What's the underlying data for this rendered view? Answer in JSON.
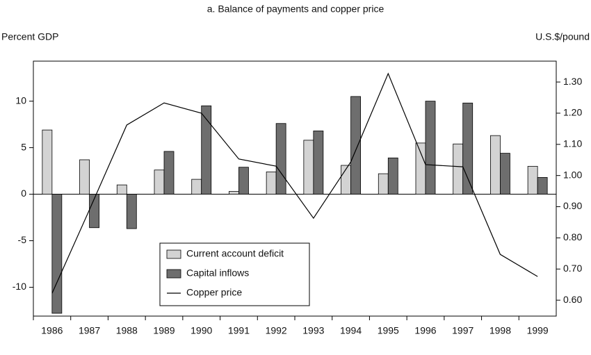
{
  "chart_data": {
    "type": "bar",
    "title": "a. Balance of payments and copper price",
    "y_label": "Percent GDP",
    "y2_label": "U.S.$/pound",
    "categories": [
      "1986",
      "1987",
      "1988",
      "1989",
      "1990",
      "1991",
      "1992",
      "1993",
      "1994",
      "1995",
      "1996",
      "1997",
      "1998",
      "1999"
    ],
    "series": [
      {
        "name": "Current account deficit",
        "color": "#d3d3d3",
        "values": [
          6.9,
          3.7,
          1.0,
          2.6,
          1.6,
          0.3,
          2.4,
          5.8,
          3.1,
          2.2,
          5.5,
          5.4,
          6.3,
          3.0
        ]
      },
      {
        "name": "Capital inflows",
        "color": "#6e6e6e",
        "values": [
          -12.8,
          -3.6,
          -3.7,
          4.6,
          9.5,
          2.9,
          7.6,
          6.8,
          10.5,
          3.9,
          10.0,
          9.8,
          4.4,
          1.8
        ]
      },
      {
        "name": "Copper price",
        "color": "#000000",
        "type": "line",
        "axis": "y2",
        "values": [
          0.622,
          0.89,
          1.162,
          1.233,
          1.2,
          1.053,
          1.03,
          0.863,
          1.044,
          1.327,
          1.035,
          1.028,
          0.747,
          0.676
        ]
      }
    ],
    "ylim": [
      -13.1,
      14.3
    ],
    "yticks": [
      -10,
      -5,
      0,
      5,
      10
    ],
    "y2lim": [
      0.549,
      1.367
    ],
    "y2ticks": [
      {
        "value": 0.6,
        "label": "0.60"
      },
      {
        "value": 0.7,
        "label": "0.70"
      },
      {
        "value": 0.8,
        "label": "0.80"
      },
      {
        "value": 0.9,
        "label": "0.90"
      },
      {
        "value": 1.0,
        "label": "1.00"
      },
      {
        "value": 1.1,
        "label": "1.10"
      },
      {
        "value": 1.2,
        "label": "1.20"
      },
      {
        "value": 1.3,
        "label": "1.30"
      }
    ]
  }
}
